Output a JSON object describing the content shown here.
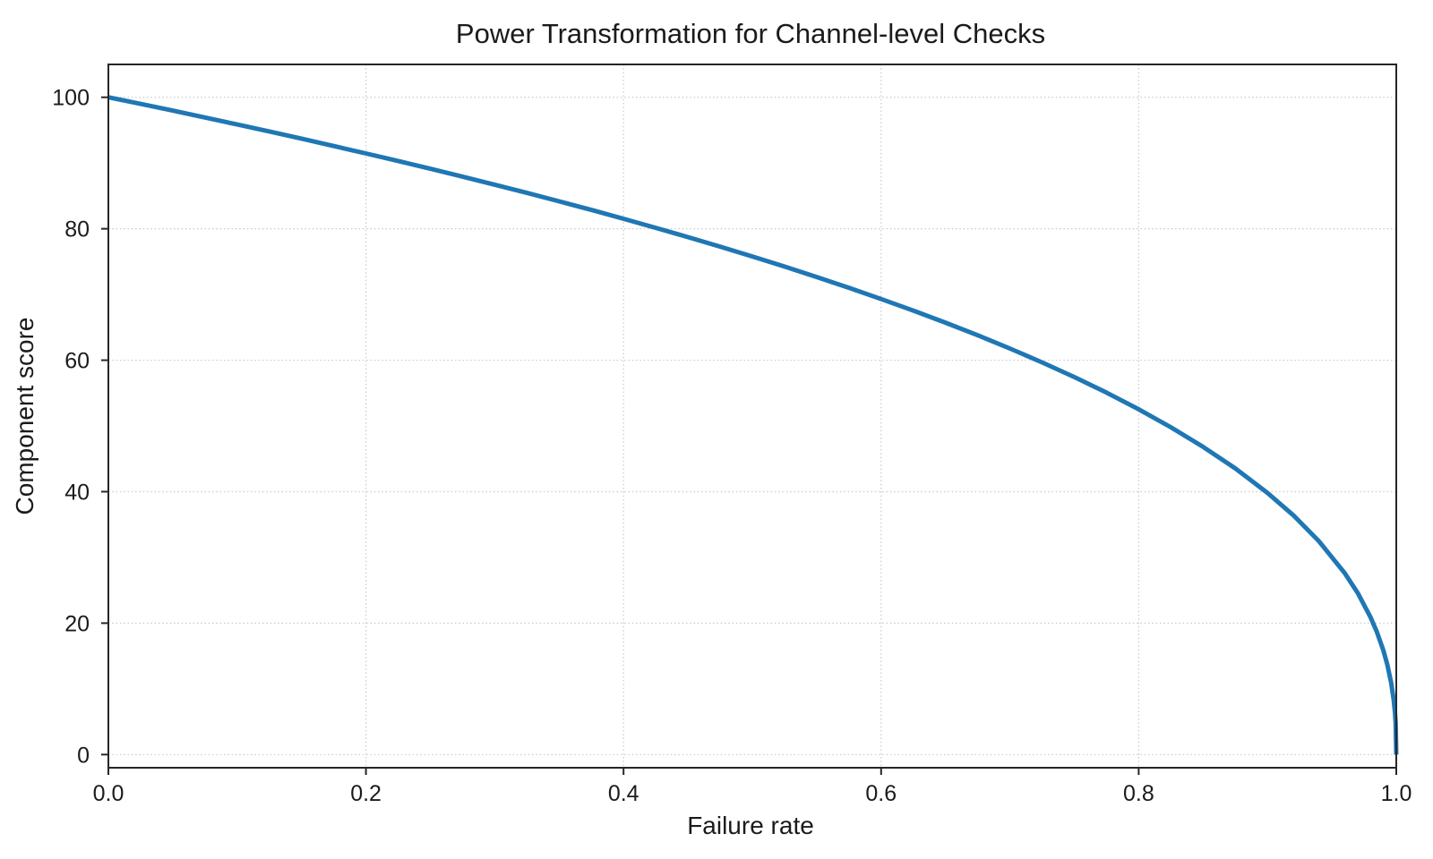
{
  "chart_data": {
    "type": "line",
    "title": "Power Transformation for Channel-level Checks",
    "xlabel": "Failure rate",
    "ylabel": "Component score",
    "xlim": [
      0,
      1
    ],
    "ylim": [
      -2,
      105
    ],
    "xticks": [
      0,
      0.2,
      0.4,
      0.6,
      0.8,
      1.0
    ],
    "xtick_labels": [
      "0.0",
      "0.2",
      "0.4",
      "0.6",
      "0.8",
      "1.0"
    ],
    "yticks": [
      0,
      20,
      40,
      60,
      80,
      100
    ],
    "ytick_labels": [
      "0",
      "20",
      "40",
      "60",
      "80",
      "100"
    ],
    "grid": true,
    "grid_style": "dotted",
    "legend": "none",
    "colors": {
      "line": "#1f77b4",
      "grid": "#c9c9c9",
      "spine": "#262626",
      "tick": "#262626",
      "text": "#1b1b1b",
      "background": "#ffffff"
    },
    "line_width": 5,
    "series": [
      {
        "name": "component-score-curve",
        "x": [
          0,
          0.025,
          0.05,
          0.075,
          0.1,
          0.125,
          0.15,
          0.175,
          0.2,
          0.225,
          0.25,
          0.275,
          0.3,
          0.325,
          0.35,
          0.375,
          0.4,
          0.425,
          0.45,
          0.475,
          0.5,
          0.525,
          0.55,
          0.575,
          0.6,
          0.625,
          0.65,
          0.675,
          0.7,
          0.725,
          0.75,
          0.775,
          0.8,
          0.825,
          0.85,
          0.875,
          0.9,
          0.92,
          0.94,
          0.96,
          0.97,
          0.98,
          0.985,
          0.99,
          0.993,
          0.996,
          0.998,
          0.999,
          0.9995,
          1.0
        ],
        "y": [
          100,
          98.99,
          97.97,
          96.93,
          95.87,
          94.8,
          93.71,
          92.59,
          91.46,
          90.31,
          89.13,
          87.93,
          86.7,
          85.45,
          84.17,
          82.86,
          81.52,
          80.14,
          78.73,
          77.28,
          75.79,
          74.25,
          72.66,
          71.02,
          69.31,
          67.55,
          65.71,
          63.79,
          61.78,
          59.67,
          57.43,
          55.06,
          52.53,
          49.8,
          46.82,
          43.53,
          39.81,
          36.41,
          32.45,
          27.59,
          24.6,
          20.91,
          18.64,
          15.85,
          13.74,
          10.99,
          8.33,
          6.31,
          4.78,
          0
        ]
      }
    ]
  }
}
